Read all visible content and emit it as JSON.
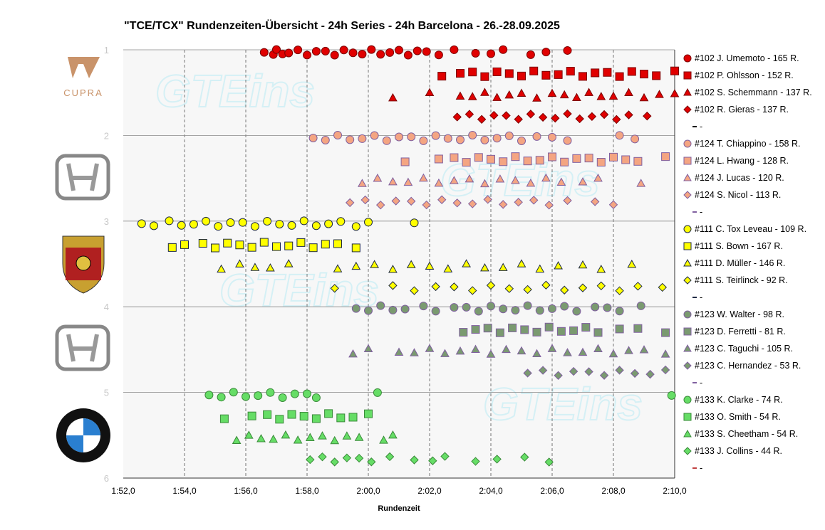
{
  "chart_data": {
    "type": "scatter",
    "title": "\"TCE/TCX\" Rundenzeiten-Übersicht - 24h Series - 24h Barcelona - 26.-28.09.2025",
    "xlabel": "Rundenzeit",
    "ylabel": "",
    "xlim_seconds": [
      112,
      130
    ],
    "ylim": [
      1,
      6
    ],
    "y_reversed": true,
    "x_ticks": [
      "1:52,0",
      "1:54,0",
      "1:56,0",
      "1:58,0",
      "2:00,0",
      "2:02,0",
      "2:04,0",
      "2:06,0",
      "2:08,0",
      "2:10,0"
    ],
    "y_ticks": [
      "1",
      "2",
      "3",
      "4",
      "5",
      "6"
    ],
    "grid": "vertical dashed, horizontal solid",
    "legend_placement": "right",
    "watermark": "GTEins",
    "logos": [
      "Cupra",
      "Honda",
      "Porsche",
      "Honda",
      "BMW"
    ],
    "groups": [
      {
        "car": "#102",
        "fill": "#e00000",
        "stroke": "#7a0000",
        "separator_color": "#000000",
        "series": [
          {
            "name": "#102 J. Umemoto - 165 R.",
            "marker": "circle",
            "y": 1.03,
            "x": [
              116.6,
              116.9,
              117.0,
              117.2,
              117.4,
              117.7,
              118.0,
              118.3,
              118.6,
              118.9,
              119.2,
              119.5,
              119.8,
              120.1,
              120.4,
              120.7,
              121.0,
              121.3,
              121.6,
              121.9,
              122.3,
              122.8,
              123.5,
              124.0,
              124.4,
              125.3,
              125.8,
              126.5
            ]
          },
          {
            "name": "#102 P. Ohlsson - 152 R.",
            "marker": "square",
            "y": 1.28,
            "x": [
              122.4,
              123.0,
              123.4,
              123.8,
              124.2,
              124.6,
              125.0,
              125.4,
              125.8,
              126.2,
              126.6,
              127.0,
              127.4,
              127.8,
              128.2,
              128.6,
              129.0,
              129.4,
              130.0
            ]
          },
          {
            "name": "#102 S. Schemmann - 137 R.",
            "marker": "triangle",
            "y": 1.53,
            "x": [
              120.8,
              122.0,
              123.0,
              123.4,
              123.8,
              124.2,
              124.6,
              125.0,
              125.5,
              126.0,
              126.4,
              126.8,
              127.2,
              127.6,
              128.0,
              128.5,
              129.0,
              129.5,
              130.0
            ]
          },
          {
            "name": "#102 R. Gieras - 137 R.",
            "marker": "diamond",
            "y": 1.78,
            "x": [
              122.9,
              123.3,
              123.7,
              124.1,
              124.5,
              124.9,
              125.3,
              125.7,
              126.1,
              126.5,
              126.9,
              127.3,
              127.7,
              128.1,
              128.5,
              129.1
            ]
          }
        ]
      },
      {
        "car": "#124",
        "fill": "#f4a582",
        "stroke": "#8060a0",
        "separator_color": "#8060a0",
        "series": [
          {
            "name": "#124 T. Chiappino - 158 R.",
            "marker": "circle",
            "y": 2.03,
            "x": [
              118.2,
              118.6,
              119.0,
              119.4,
              119.8,
              120.2,
              120.6,
              121.0,
              121.4,
              121.8,
              122.2,
              122.6,
              123.0,
              123.4,
              123.8,
              124.2,
              124.6,
              125.0,
              125.5,
              126.0,
              126.5,
              128.2,
              128.7
            ]
          },
          {
            "name": "#124 L. Hwang - 128 R.",
            "marker": "square",
            "y": 2.28,
            "x": [
              121.2,
              122.3,
              122.8,
              123.2,
              123.6,
              124.0,
              124.4,
              124.8,
              125.2,
              125.6,
              126.0,
              126.4,
              126.8,
              127.2,
              127.6,
              128.0,
              128.4,
              128.8,
              129.7
            ]
          },
          {
            "name": "#124 J. Lucas - 120 R.",
            "marker": "triangle",
            "y": 2.53,
            "x": [
              119.8,
              120.3,
              120.8,
              121.3,
              121.8,
              122.3,
              122.8,
              123.3,
              123.8,
              124.3,
              124.8,
              125.3,
              125.8,
              126.3,
              127.0,
              127.5,
              128.9
            ]
          },
          {
            "name": "#124 S. Nicol - 113 R.",
            "marker": "diamond",
            "y": 2.78,
            "x": [
              119.4,
              119.9,
              120.4,
              120.9,
              121.4,
              121.9,
              122.4,
              122.9,
              123.4,
              123.9,
              124.4,
              124.9,
              125.4,
              125.9,
              126.5,
              127.4,
              128.0
            ]
          }
        ]
      },
      {
        "car": "#111",
        "fill": "#ffff00",
        "stroke": "#1f2a44",
        "separator_color": "#1f2a44",
        "series": [
          {
            "name": "#111 C. Tox Leveau - 109 R.",
            "marker": "circle",
            "y": 3.03,
            "x": [
              112.6,
              113.0,
              113.5,
              113.9,
              114.3,
              114.7,
              115.1,
              115.5,
              115.9,
              116.3,
              116.7,
              117.1,
              117.5,
              117.9,
              118.3,
              118.7,
              119.1,
              119.6,
              120.0,
              121.5
            ]
          },
          {
            "name": "#111 S. Bown - 167 R.",
            "marker": "square",
            "y": 3.28,
            "x": [
              113.6,
              114.0,
              114.6,
              115.0,
              115.4,
              115.8,
              116.2,
              116.6,
              117.0,
              117.4,
              117.8,
              118.2,
              118.6,
              119.0,
              119.6
            ]
          },
          {
            "name": "#111 D. Müller - 146 R.",
            "marker": "triangle",
            "y": 3.53,
            "x": [
              115.2,
              115.8,
              116.3,
              116.8,
              117.4,
              119.0,
              119.6,
              120.2,
              120.8,
              121.4,
              122.0,
              122.6,
              123.2,
              123.8,
              124.4,
              125.0,
              125.6,
              126.2,
              127.0,
              127.6,
              128.6
            ]
          },
          {
            "name": "#111 S. Teirlinck - 92 R.",
            "marker": "diamond",
            "y": 3.78,
            "x": [
              118.9,
              120.8,
              121.5,
              122.2,
              122.8,
              123.4,
              124.0,
              124.6,
              125.2,
              125.8,
              126.4,
              127.0,
              127.6,
              128.2,
              128.8,
              129.6
            ]
          }
        ]
      },
      {
        "car": "#123",
        "fill": "#7a9a70",
        "stroke": "#8060a0",
        "separator_color": "#8060a0",
        "series": [
          {
            "name": "#123 W. Walter - 98 R.",
            "marker": "circle",
            "y": 4.02,
            "x": [
              119.6,
              120.0,
              120.4,
              120.8,
              121.2,
              121.8,
              122.2,
              122.8,
              123.2,
              123.6,
              124.0,
              124.4,
              124.8,
              125.2,
              125.6,
              126.0,
              126.4,
              126.8,
              127.4,
              127.8,
              128.2,
              128.9
            ]
          },
          {
            "name": "#123 D. Ferretti - 81 R.",
            "marker": "square",
            "y": 4.27,
            "x": [
              123.1,
              123.5,
              123.9,
              124.3,
              124.7,
              125.1,
              125.5,
              125.9,
              126.3,
              126.7,
              127.1,
              127.5,
              128.2,
              128.8,
              129.7
            ]
          },
          {
            "name": "#123 C. Taguchi - 105 R.",
            "marker": "triangle",
            "y": 4.52,
            "x": [
              119.5,
              120.0,
              121.0,
              121.5,
              122.0,
              122.5,
              123.0,
              123.5,
              124.0,
              124.5,
              125.0,
              125.5,
              126.0,
              126.5,
              127.0,
              127.5,
              128.0,
              128.5,
              129.0,
              129.7
            ]
          },
          {
            "name": "#123 C. Hernandez - 53 R.",
            "marker": "diamond",
            "y": 4.77,
            "x": [
              125.2,
              125.7,
              126.2,
              126.7,
              127.2,
              127.7,
              128.2,
              128.7,
              129.2,
              129.7
            ]
          }
        ]
      },
      {
        "car": "#133",
        "fill": "#66dd66",
        "stroke": "#3a8a3a",
        "separator_color": "#c04040",
        "series": [
          {
            "name": "#133 K. Clarke - 74 R.",
            "marker": "circle",
            "y": 5.03,
            "x": [
              114.8,
              115.2,
              115.6,
              116.0,
              116.4,
              116.8,
              117.2,
              117.6,
              118.0,
              118.3,
              120.3,
              129.9
            ]
          },
          {
            "name": "#133 O. Smith - 54 R.",
            "marker": "square",
            "y": 5.28,
            "x": [
              115.3,
              116.2,
              116.7,
              117.1,
              117.5,
              117.9,
              118.3,
              118.7,
              119.1,
              119.5,
              120.0
            ]
          },
          {
            "name": "#133 S. Cheetham - 54 R.",
            "marker": "triangle",
            "y": 5.53,
            "x": [
              115.7,
              116.1,
              116.5,
              116.9,
              117.3,
              117.7,
              118.1,
              118.5,
              118.9,
              119.3,
              119.7,
              120.5,
              120.8
            ]
          },
          {
            "name": "#133 J. Collins - 44 R.",
            "marker": "diamond",
            "y": 5.78,
            "x": [
              118.1,
              118.5,
              118.9,
              119.3,
              119.7,
              120.1,
              120.7,
              121.5,
              122.1,
              122.5,
              123.5,
              124.2,
              125.1,
              125.9
            ]
          }
        ]
      }
    ]
  }
}
